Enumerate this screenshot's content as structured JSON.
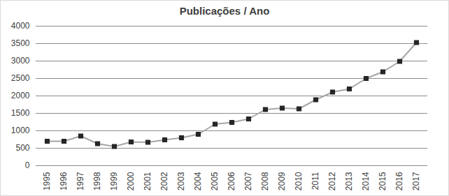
{
  "chart_data": {
    "type": "line",
    "title": "Publicações / Ano",
    "categories": [
      "1995",
      "1996",
      "1997",
      "1998",
      "1999",
      "2000",
      "2001",
      "2002",
      "2003",
      "2004",
      "2005",
      "2006",
      "2007",
      "2008",
      "2009",
      "2010",
      "2011",
      "2012",
      "2013",
      "2014",
      "2015",
      "2016",
      "2017"
    ],
    "values": [
      700,
      700,
      850,
      630,
      550,
      680,
      670,
      740,
      800,
      900,
      1190,
      1240,
      1340,
      1610,
      1650,
      1630,
      1890,
      2110,
      2200,
      2500,
      2690,
      2990,
      3530
    ],
    "color": "#a6a6a6",
    "marker": "square",
    "ylim": [
      0,
      4000
    ],
    "yticks": [
      0,
      500,
      1000,
      1500,
      2000,
      2500,
      3000,
      3500,
      4000
    ],
    "grid": true
  }
}
